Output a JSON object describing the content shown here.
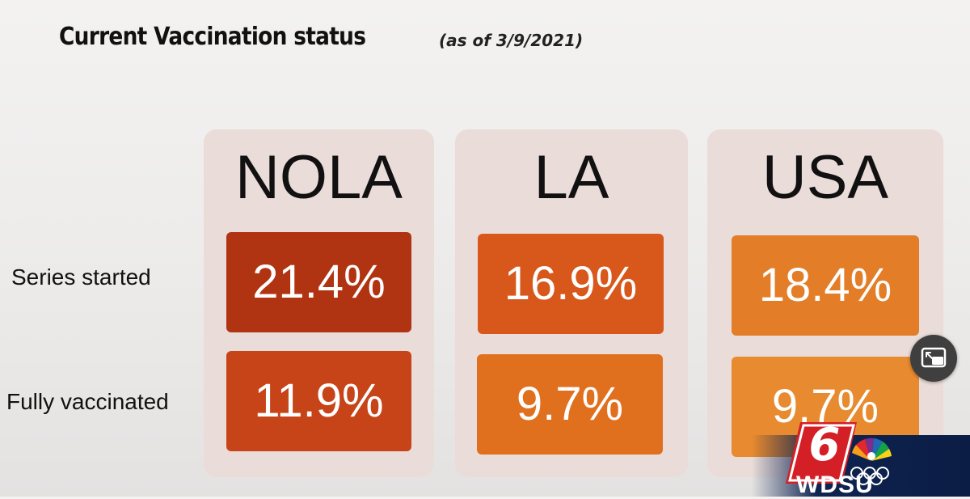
{
  "title": {
    "main": "Current Vaccination status",
    "date": "(as of 3/9/2021)"
  },
  "rows": [
    "Series started",
    "Fully vaccinated"
  ],
  "columns": [
    {
      "name": "NOLA",
      "series_started": "21.4%",
      "fully_vaccinated": "11.9%"
    },
    {
      "name": "LA",
      "series_started": "16.9%",
      "fully_vaccinated": "9.7%"
    },
    {
      "name": "USA",
      "series_started": "18.4%",
      "fully_vaccinated": "9.7%"
    }
  ],
  "colors": {
    "nola_started": "#b13412",
    "nola_full": "#c64418",
    "la_started": "#d8581c",
    "la_full": "#e0701e",
    "usa_started": "#e37d27",
    "usa_full": "#e88a2f",
    "column_bg": "#eadcd9"
  },
  "logo": {
    "channel": "6",
    "station": "WDSU"
  },
  "icons": {
    "pip": "picture-in-picture-icon"
  }
}
